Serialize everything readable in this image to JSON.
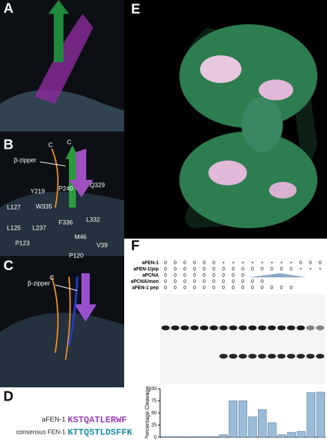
{
  "panel_letters": [
    "A",
    "B",
    "C",
    "D",
    "E",
    "F"
  ],
  "panel_b": {
    "labels": [
      "β-zipper",
      "C",
      "C",
      "Y219",
      "P240",
      "Q329",
      "L127",
      "W335",
      "L125",
      "L237",
      "F336",
      "L332",
      "P123",
      "M46",
      "V39",
      "P120"
    ]
  },
  "panel_c": {
    "labels": [
      "β-zipper",
      "C"
    ]
  },
  "panel_d": {
    "rows": [
      {
        "name": "aFEN-1",
        "sequence": "KSTQATLERWF"
      },
      {
        "name": "consensus FEN-1",
        "sequence": "KTTQSTLDSFFK"
      }
    ]
  },
  "gel": {
    "rows": [
      {
        "label": "aFEN-1",
        "cells": [
          "0",
          "0",
          "0",
          "0",
          "0",
          "0",
          "+",
          "+",
          "+",
          "+",
          "+",
          "+",
          "+",
          "+",
          "0",
          "0",
          "0"
        ]
      },
      {
        "label": "aFEN-1/pip",
        "cells": [
          "0",
          "0",
          "0",
          "0",
          "0",
          "0",
          "0",
          "0",
          "0",
          "0",
          "0",
          "0",
          "0",
          "0",
          "+",
          "+",
          "+"
        ]
      },
      {
        "label": "aPCNA",
        "cells": [
          "0",
          "0",
          "0",
          "0",
          "0",
          "0",
          "0",
          "0",
          "0"
        ]
      },
      {
        "label": "aPCNA/mon",
        "cells": [
          "0",
          "0",
          "0",
          "0",
          "0",
          "0",
          "0",
          "0",
          "0",
          "0",
          "0"
        ]
      },
      {
        "label": "aFEN-1 pep",
        "cells": [
          "0",
          "0",
          "0",
          "0",
          "0",
          "0",
          "0",
          "0",
          "0",
          "0",
          "0",
          "0",
          "0",
          "0"
        ]
      }
    ]
  },
  "chart_data": {
    "type": "bar",
    "y_label": "Percentage Cleavage",
    "values": [
      1,
      1,
      1,
      1,
      1,
      1,
      5,
      75,
      75,
      42,
      57,
      30,
      5,
      10,
      12,
      92,
      93
    ],
    "color": "#9bbcd8",
    "ylim": [
      0,
      100
    ],
    "yticks": [
      0,
      25,
      50,
      75,
      100
    ]
  }
}
